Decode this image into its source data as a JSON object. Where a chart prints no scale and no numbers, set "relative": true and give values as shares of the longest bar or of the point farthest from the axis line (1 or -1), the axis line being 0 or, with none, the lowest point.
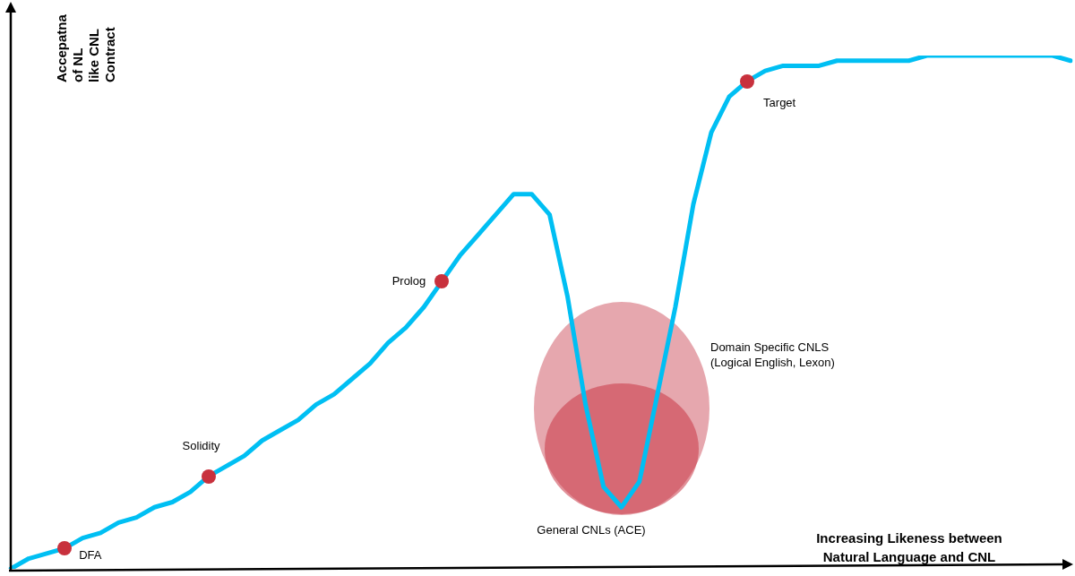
{
  "chart_data": {
    "type": "line",
    "relative": true,
    "legend": false,
    "grid": false,
    "xlabel": "Increasing Likeness between\nNatural Language and CNL",
    "ylabel": "Accepatna\nof NL\nlike CNL\nContract",
    "categories": [
      null,
      null,
      null,
      null,
      null,
      null,
      null,
      null,
      null,
      null,
      null,
      null,
      null,
      null,
      null,
      null,
      null,
      null,
      null,
      null,
      null,
      null,
      null,
      null,
      null,
      null,
      null,
      null,
      null,
      null,
      null,
      null,
      null,
      null,
      null,
      null,
      null,
      null,
      null,
      null,
      null,
      null,
      null,
      null,
      null,
      null,
      null,
      null,
      null,
      null,
      null,
      null,
      null,
      null,
      null,
      null,
      null,
      null,
      null,
      null
    ],
    "series": [
      {
        "marker": "none",
        "color": "#00bff3",
        "values": [
          0,
          0.02,
          0.03,
          0.04,
          0.06,
          0.07,
          0.09,
          0.1,
          0.12,
          0.13,
          0.15,
          0.18,
          0.2,
          0.22,
          0.25,
          0.27,
          0.29,
          0.32,
          0.34,
          0.37,
          0.4,
          0.44,
          0.47,
          0.51,
          0.56,
          0.61,
          0.65,
          0.69,
          0.73,
          0.73,
          0.69,
          0.53,
          0.32,
          0.16,
          0.12,
          0.17,
          0.34,
          0.51,
          0.71,
          0.85,
          0.92,
          0.95,
          0.97,
          0.98,
          0.98,
          0.98,
          0.99,
          0.99,
          0.99,
          0.99,
          0.99,
          1.0,
          1.0,
          1.0,
          1.0,
          1.0,
          1.0,
          1.0,
          1.0,
          0.99
        ]
      }
    ],
    "annotations": [
      "DFA",
      "Solidity",
      "Prolog",
      "Target",
      "Domain Specific CNLS\n(Logical English, Lexon)",
      "General CNLs (ACE)"
    ]
  }
}
